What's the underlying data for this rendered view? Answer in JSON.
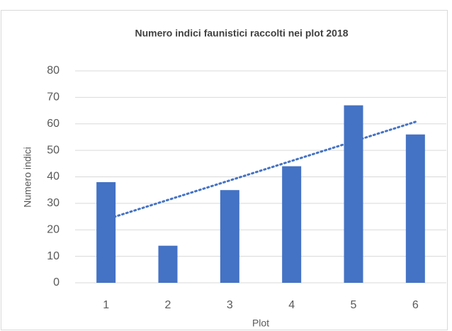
{
  "chart_data": {
    "type": "bar",
    "title": "Numero indici faunistici raccolti nei plot 2018",
    "x_label": "Plot",
    "y_label": "Numero indici",
    "categories": [
      "1",
      "2",
      "3",
      "4",
      "5",
      "6"
    ],
    "values": [
      38,
      14,
      35,
      44,
      67,
      56
    ],
    "color": "#4472c4",
    "ylim": [
      0,
      80
    ],
    "yticks": [
      0,
      10,
      20,
      30,
      40,
      50,
      60,
      70,
      80
    ],
    "grid": true,
    "trendline": "linear"
  }
}
